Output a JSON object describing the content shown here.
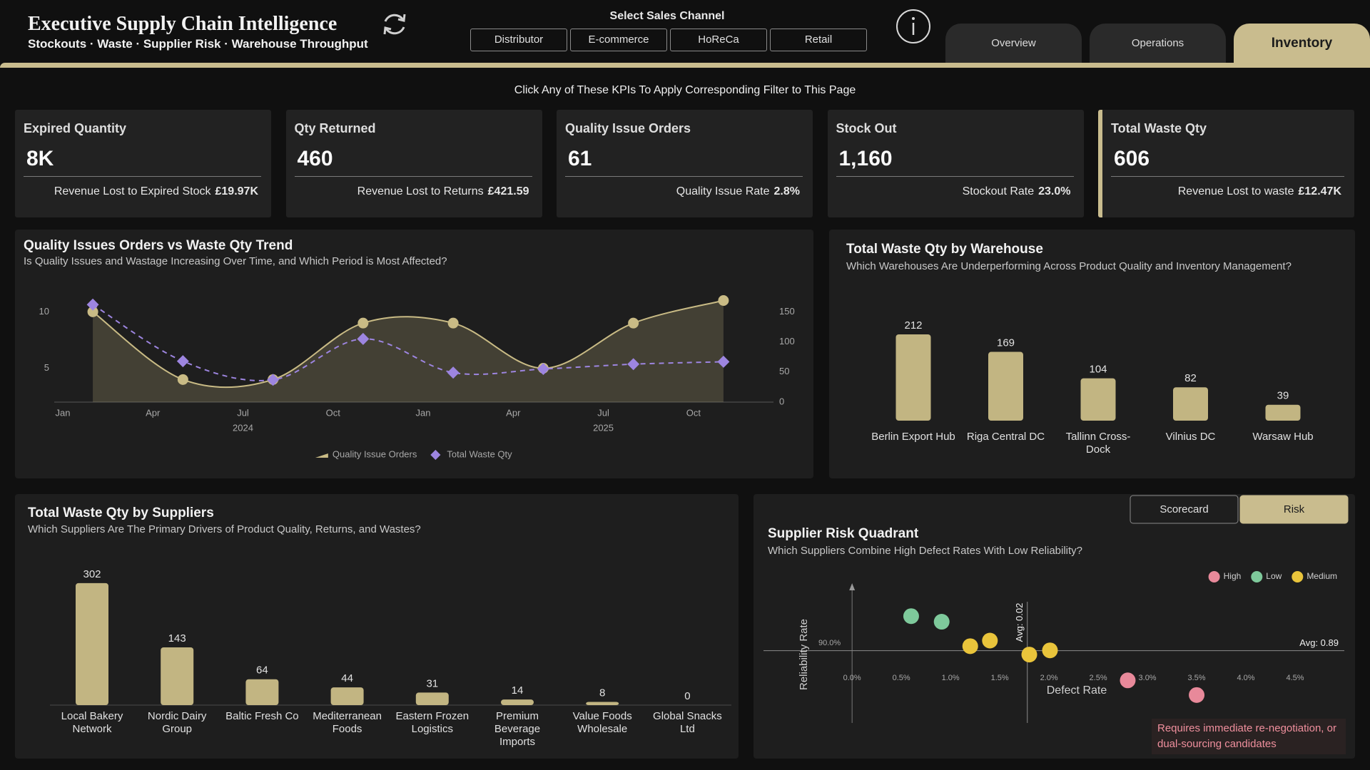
{
  "header": {
    "title": "Executive Supply Chain Intelligence",
    "subtitle": "Stockouts · Waste · Supplier Risk · Warehouse Throughput",
    "channel_label": "Select Sales Channel",
    "channels": [
      "Distributor",
      "E-commerce",
      "HoReCa",
      "Retail"
    ],
    "tabs": [
      "Overview",
      "Operations",
      "Inventory"
    ],
    "active_tab": 2
  },
  "banner": "Click Any of These KPIs To Apply Corresponding Filter to This Page",
  "kpis": [
    {
      "label": "Expired Quantity",
      "value": "8K",
      "note_label": "Revenue Lost to Expired Stock",
      "note_value": "£19.97K"
    },
    {
      "label": "Qty Returned",
      "value": "460",
      "note_label": "Revenue Lost to Returns",
      "note_value": "£421.59"
    },
    {
      "label": "Quality Issue Orders",
      "value": "61",
      "note_label": "Quality Issue Rate",
      "note_value": "2.8%"
    },
    {
      "label": "Stock Out",
      "value": "1,160",
      "note_label": "Stockout Rate",
      "note_value": "23.0%"
    },
    {
      "label": "Total Waste Qty",
      "value": "606",
      "note_label": "Revenue Lost to waste",
      "note_value": "£12.47K"
    }
  ],
  "chart_data": [
    {
      "type": "line",
      "title": "Quality Issues Orders vs Waste Qty Trend",
      "subtitle": "Is Quality Issues and Wastage Increasing Over Time, and Which Period is Most Affected?",
      "x": [
        "2024-02",
        "2024-05",
        "2024-08",
        "2024-11",
        "2025-02",
        "2025-05",
        "2025-08",
        "2025-11"
      ],
      "xlim": [
        "2024-01",
        "2025-12"
      ],
      "xticks": [
        {
          "value": "2024-01",
          "label": "Jan"
        },
        {
          "value": "2024-04",
          "label": "Apr"
        },
        {
          "value": "2024-07",
          "label": "Jul"
        },
        {
          "value": "2024-10",
          "label": "Oct"
        },
        {
          "value": "2025-01",
          "label": "Jan"
        },
        {
          "value": "2025-04",
          "label": "Apr"
        },
        {
          "value": "2025-07",
          "label": "Jul"
        },
        {
          "value": "2025-10",
          "label": "Oct"
        }
      ],
      "x_year_labels": [
        {
          "value": "2024-07",
          "label": "2024"
        },
        {
          "value": "2025-07",
          "label": "2025"
        }
      ],
      "ylim": [
        2,
        11.6
      ],
      "yticks": [
        5,
        10
      ],
      "y2lim": [
        0,
        180
      ],
      "y2ticks": [
        0,
        50,
        100,
        150
      ],
      "series": [
        {
          "name": "Quality Issue Orders",
          "color": "#c9bb85",
          "area": true,
          "values": [
            10,
            4,
            4,
            9,
            9,
            5,
            9,
            11
          ]
        },
        {
          "name": "Total Waste Qty",
          "color": "#9d85e0",
          "axis": "y2",
          "dashed": true,
          "values": [
            162,
            68,
            37,
            105,
            49,
            55,
            63,
            67
          ]
        }
      ],
      "legend": "bottom"
    },
    {
      "type": "bar",
      "title": "Total Waste Qty by Warehouse",
      "subtitle": "Which Warehouses Are Underperforming Across Product Quality and Inventory Management?",
      "categories": [
        "Berlin Export Hub",
        "Riga Central DC",
        "Tallinn Cross-Dock",
        "Vilnius DC",
        "Warsaw Hub"
      ],
      "values": [
        212,
        169,
        104,
        82,
        39
      ],
      "color": "#c2b582",
      "ylim": [
        0,
        240
      ]
    },
    {
      "type": "bar",
      "title": "Total Waste Qty by Suppliers",
      "subtitle": "Which Suppliers Are The Primary Drivers of Product Quality, Returns, and Wastes?",
      "categories": [
        "Local Bakery Network",
        "Nordic Dairy Group",
        "Baltic Fresh Co",
        "Mediterranean Foods",
        "Eastern Frozen Logistics",
        "Premium Beverage Imports",
        "Value Foods Wholesale",
        "Global Snacks Ltd"
      ],
      "values": [
        302,
        143,
        64,
        44,
        31,
        14,
        8,
        0
      ],
      "color": "#c2b582",
      "ylim": [
        0,
        330
      ]
    },
    {
      "type": "scatter",
      "title": "Supplier Risk Quadrant",
      "subtitle": "Which Suppliers Combine High Defect Rates With Low Reliability?",
      "buttons": [
        "Scorecard",
        "Risk"
      ],
      "active_button": 1,
      "x_label": "Defect Rate",
      "y_label": "Reliability Rate",
      "xlim": [
        -0.9,
        5.0
      ],
      "xticks": [
        {
          "value": 0,
          "label": "0.0%"
        },
        {
          "value": 0.5,
          "label": "0.5%"
        },
        {
          "value": 1,
          "label": "1.0%"
        },
        {
          "value": 1.5,
          "label": "1.5%"
        },
        {
          "value": 2,
          "label": "2.0%"
        },
        {
          "value": 2.5,
          "label": "2.5%"
        },
        {
          "value": 3,
          "label": "3.0%"
        },
        {
          "value": 3.5,
          "label": "3.5%"
        },
        {
          "value": 4,
          "label": "4.0%"
        },
        {
          "value": 4.5,
          "label": "4.5%"
        }
      ],
      "ylim": [
        79,
        98
      ],
      "yticks": [
        {
          "value": 90,
          "label": "90.0%"
        }
      ],
      "x_avg": {
        "value": 1.78,
        "label": "Avg: 0.02"
      },
      "y_avg": {
        "value": 89.36,
        "label": "Avg: 0.89"
      },
      "series": [
        {
          "name": "High",
          "color": "#e8899a",
          "x": [
            2.8,
            3.5
          ],
          "values": [
            85.1,
            83.0
          ]
        },
        {
          "name": "Low",
          "color": "#7ec99b",
          "x": [
            0.6,
            0.91
          ],
          "values": [
            94.3,
            93.5
          ]
        },
        {
          "name": "Medium",
          "color": "#e9c43b",
          "x": [
            1.2,
            1.4,
            1.8,
            2.01
          ],
          "values": [
            90.0,
            90.8,
            88.8,
            89.4
          ]
        }
      ],
      "legend": "top-right",
      "annotation": "Requires immediate re-negotiation, or dual-sourcing candidates"
    }
  ]
}
